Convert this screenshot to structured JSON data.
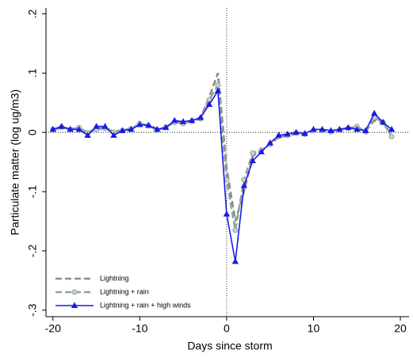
{
  "chart_data": {
    "type": "line",
    "xlabel": "Days since storm",
    "ylabel": "Particulate matter (log ug/m3)",
    "x": [
      -20,
      -19,
      -18,
      -17,
      -16,
      -15,
      -14,
      -13,
      -12,
      -11,
      -10,
      -9,
      -8,
      -7,
      -6,
      -5,
      -4,
      -3,
      -2,
      -1,
      0,
      1,
      2,
      3,
      4,
      5,
      6,
      7,
      8,
      9,
      10,
      11,
      12,
      13,
      14,
      15,
      16,
      17,
      18,
      19
    ],
    "series": [
      {
        "name": "Lightning",
        "color": "#8c8c8c",
        "dash": true,
        "marker": "none",
        "values": [
          0.004,
          0.008,
          0.006,
          0.007,
          0.0,
          0.006,
          0.008,
          0.001,
          0.004,
          0.006,
          0.014,
          0.012,
          0.006,
          0.008,
          0.018,
          0.016,
          0.02,
          0.024,
          0.06,
          0.1,
          -0.06,
          -0.15,
          -0.1,
          -0.04,
          -0.03,
          -0.02,
          -0.008,
          -0.006,
          -0.002,
          -0.003,
          0.002,
          0.002,
          0.0,
          0.004,
          0.008,
          0.008,
          0.002,
          0.02,
          0.016,
          -0.004
        ]
      },
      {
        "name": "Lightning + rain",
        "color": "#8fa39b",
        "dash": true,
        "marker": "circle",
        "values": [
          0.005,
          0.009,
          0.005,
          0.008,
          -0.001,
          0.005,
          0.007,
          0.0,
          0.003,
          0.006,
          0.015,
          0.011,
          0.004,
          0.009,
          0.017,
          0.015,
          0.019,
          0.023,
          0.055,
          0.08,
          -0.08,
          -0.165,
          -0.08,
          -0.035,
          -0.03,
          -0.02,
          -0.007,
          -0.005,
          -0.001,
          -0.003,
          0.003,
          0.003,
          0.001,
          0.004,
          0.007,
          0.01,
          0.001,
          0.025,
          0.017,
          -0.007
        ]
      },
      {
        "name": "Lightning + rain + high winds",
        "color": "#1a1ae6",
        "dash": false,
        "marker": "triangle",
        "values": [
          0.005,
          0.01,
          0.005,
          0.005,
          -0.005,
          0.01,
          0.01,
          -0.005,
          0.003,
          0.005,
          0.013,
          0.012,
          0.005,
          0.008,
          0.02,
          0.018,
          0.02,
          0.025,
          0.047,
          0.07,
          -0.138,
          -0.218,
          -0.09,
          -0.048,
          -0.033,
          -0.018,
          -0.005,
          -0.003,
          0.0,
          -0.002,
          0.005,
          0.005,
          0.003,
          0.005,
          0.008,
          0.005,
          0.003,
          0.032,
          0.017,
          0.005
        ]
      }
    ],
    "xlim": [
      -20.8,
      21
    ],
    "ylim": [
      -0.311,
      0.21
    ],
    "xticks": [
      -20,
      -10,
      0,
      10,
      20
    ],
    "yticks": [
      {
        "value": -0.3,
        "label": "-.3"
      },
      {
        "value": -0.2,
        "label": "-.2"
      },
      {
        "value": -0.1,
        "label": "-.1"
      },
      0,
      {
        "value": 0.1,
        "label": ".1"
      },
      {
        "value": 0.2,
        "label": ".2"
      }
    ],
    "xline": 0,
    "yline": 0,
    "legend": "lower-left"
  }
}
